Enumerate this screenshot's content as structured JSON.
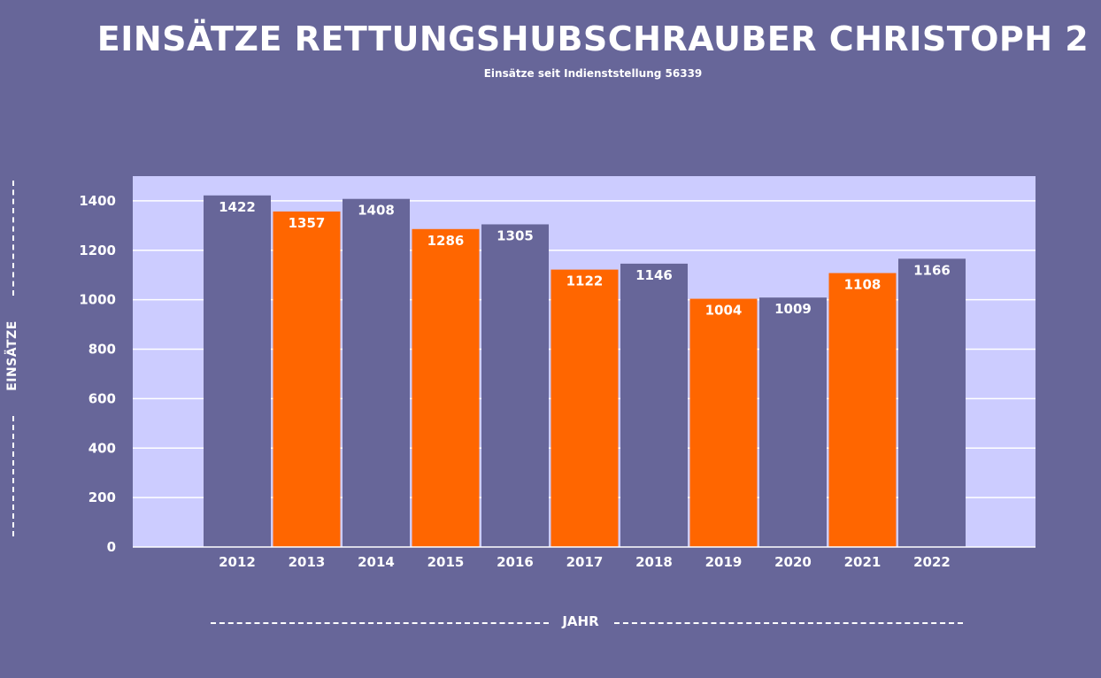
{
  "chart_data": {
    "type": "bar",
    "title": "EINSÄTZE RETTUNGSHUBSCHRAUBER CHRISTOPH 2",
    "subtitle": "Einsätze seit Indienststellung 56339",
    "xlabel": "JAHR",
    "ylabel": "EINSÄTZE",
    "categories": [
      "2012",
      "2013",
      "2014",
      "2015",
      "2016",
      "2017",
      "2018",
      "2019",
      "2020",
      "2021",
      "2022"
    ],
    "values": [
      1422,
      1357,
      1408,
      1286,
      1305,
      1122,
      1146,
      1004,
      1009,
      1108,
      1166
    ],
    "bar_colors": [
      "#676699",
      "#FF6600",
      "#676699",
      "#FF6600",
      "#676699",
      "#FF6600",
      "#676699",
      "#FF6600",
      "#676699",
      "#FF6600",
      "#676699"
    ],
    "ylim": [
      0,
      1500
    ],
    "yticks": [
      0,
      200,
      400,
      600,
      800,
      1000,
      1200,
      1400
    ],
    "grid": true,
    "legend": "none",
    "colors": {
      "background": "#676699",
      "plot_background": "#CCCCFF",
      "gridline": "#FFFFFF"
    }
  }
}
